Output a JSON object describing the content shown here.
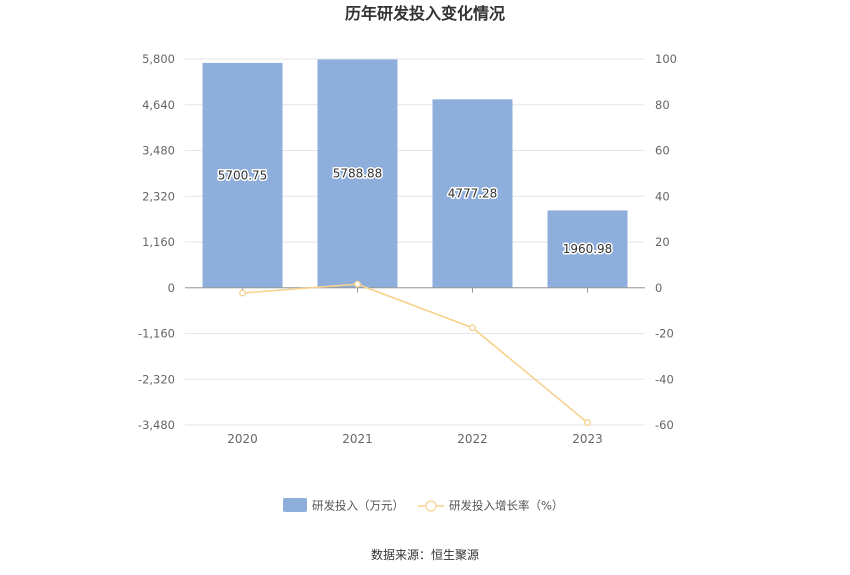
{
  "chart_data": {
    "type": "bar",
    "title": "历年研发投入变化情况",
    "categories": [
      "2020",
      "2021",
      "2022",
      "2023"
    ],
    "series": [
      {
        "name": "研发投入（万元）",
        "type": "bar",
        "axis": "left",
        "values": [
          5700.75,
          5788.88,
          4777.28,
          1960.98
        ],
        "labels": [
          "5700.75",
          "5788.88",
          "4777.28",
          "1960.98"
        ],
        "color": "#8eaedb"
      },
      {
        "name": "研发投入增长率（%）",
        "type": "line",
        "axis": "right",
        "values": [
          -2.3,
          1.55,
          -17.47,
          -58.95
        ],
        "color": "#f7d28e"
      }
    ],
    "y_left": {
      "min": -3480,
      "max": 5800,
      "ticks": [
        "5,800",
        "4,640",
        "3,480",
        "2,320",
        "1,160",
        "0",
        "-1,160",
        "-2,320",
        "-3,480"
      ]
    },
    "y_right": {
      "min": -60,
      "max": 100,
      "ticks": [
        "100",
        "80",
        "60",
        "40",
        "20",
        "0",
        "-20",
        "-40",
        "-60"
      ]
    },
    "grid": true,
    "legend_position": "bottom-center"
  },
  "source": "数据来源：恒生聚源",
  "colors": {
    "bar": "#8eaedb",
    "line": "#f7d28e",
    "grid": "#e6e6e6",
    "axis": "#cccccc"
  }
}
